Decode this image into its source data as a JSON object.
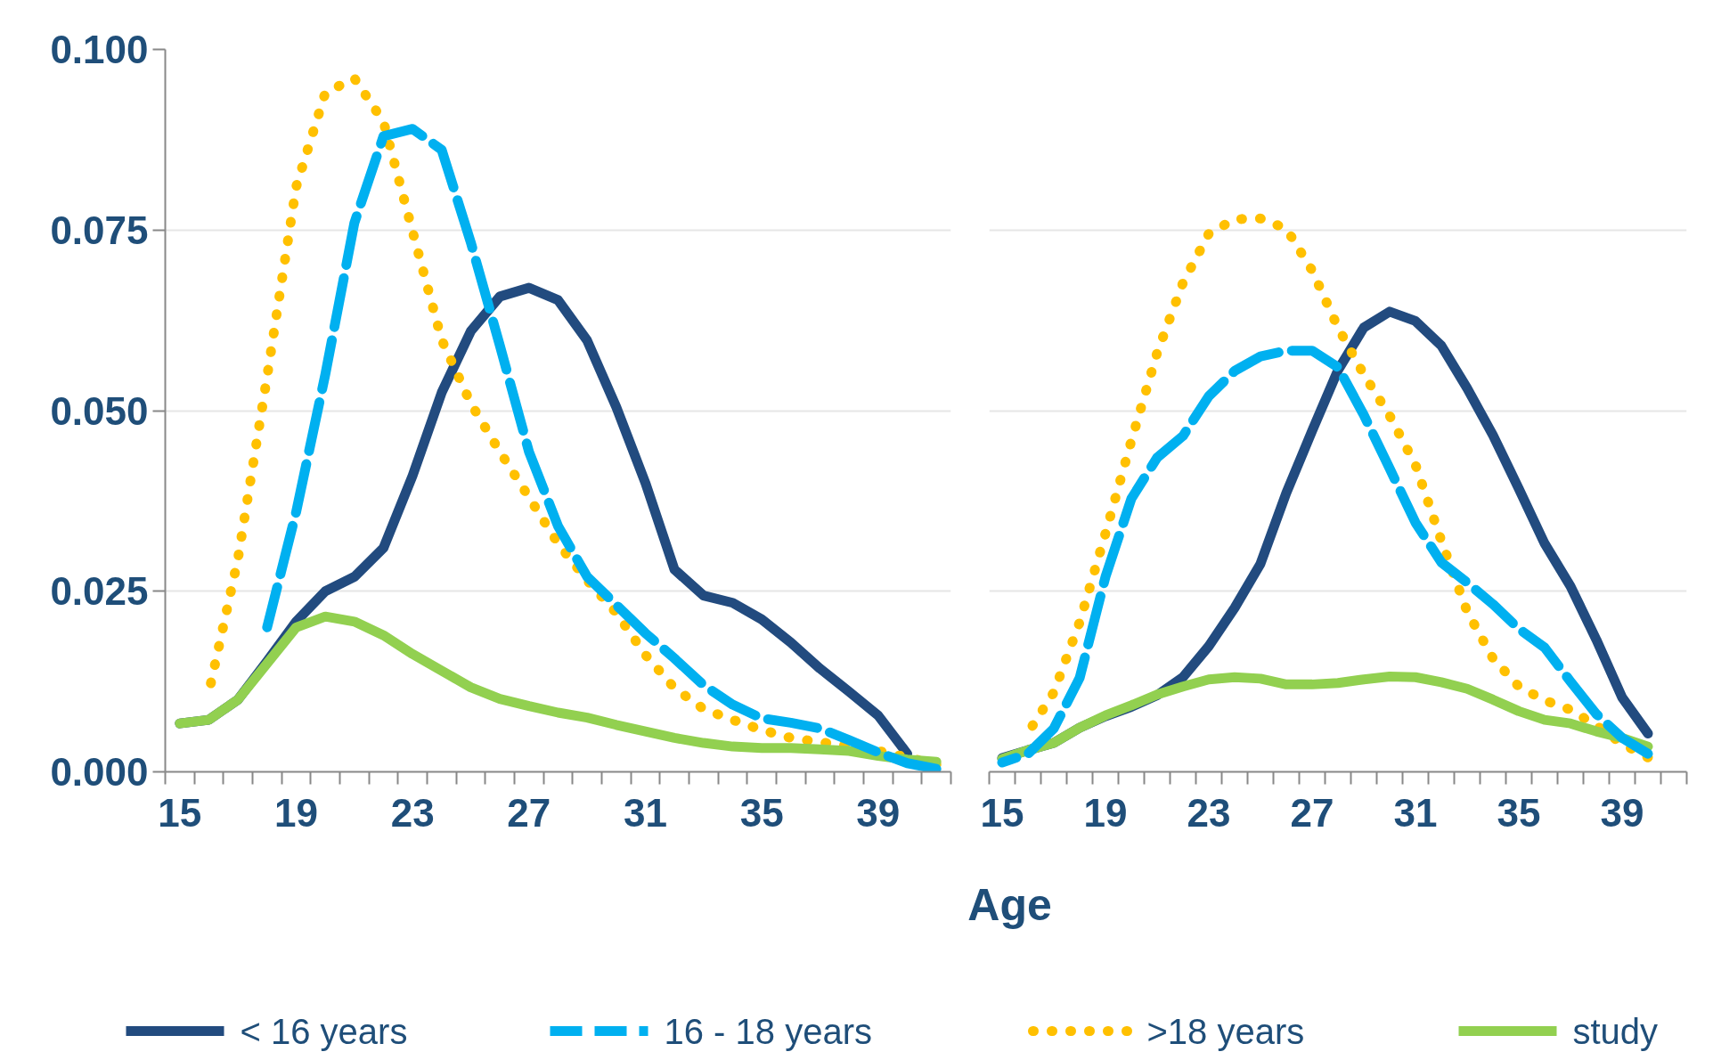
{
  "chart_data": [
    {
      "type": "line",
      "xlabel": "Age",
      "legend": "bottom",
      "grid": "y",
      "marker": "none",
      "categories": [
        "15",
        null,
        null,
        null,
        "19",
        null,
        null,
        null,
        "23",
        null,
        null,
        null,
        "27",
        null,
        null,
        null,
        "31",
        null,
        null,
        null,
        "35",
        null,
        null,
        null,
        "39",
        null,
        null
      ],
      "ylim": [
        0,
        0.1
      ],
      "yticks": [
        {
          "value": 0,
          "label": "0.000"
        },
        {
          "value": 0.025,
          "label": "0.025"
        },
        {
          "value": 0.05,
          "label": "0.050"
        },
        {
          "value": 0.075,
          "label": "0.075"
        },
        {
          "value": 0.1,
          "label": "0.100"
        }
      ],
      "series": [
        {
          "name": "< 16 years",
          "color": "#224b7f",
          "line_style": "solid",
          "values": [
            0.0067,
            0.0072,
            0.01,
            0.0153,
            0.0208,
            0.025,
            0.027,
            0.031,
            0.041,
            0.0525,
            0.061,
            0.0658,
            0.067,
            0.0653,
            0.0597,
            0.0505,
            0.04,
            0.028,
            0.0244,
            0.0234,
            0.0211,
            0.0179,
            0.0143,
            0.0111,
            0.0078,
            0.0025,
            null
          ]
        },
        {
          "name": "16 - 18 years",
          "color": "#00b0f0",
          "line_style": "dashed",
          "values": [
            null,
            null,
            null,
            0.02,
            0.036,
            0.055,
            0.076,
            0.088,
            0.089,
            0.0861,
            0.0733,
            0.059,
            0.0443,
            0.034,
            0.027,
            0.0231,
            0.0192,
            0.0157,
            0.012,
            0.0093,
            0.0074,
            0.0068,
            0.006,
            0.0044,
            0.0027,
            0.0012,
            0.0004
          ]
        },
        {
          "name": ">18 years",
          "color": "#ffc000",
          "line_style": "dotted",
          "values": [
            null,
            0.011,
            0.0295,
            0.0547,
            0.081,
            0.094,
            0.096,
            0.09,
            0.0748,
            0.0598,
            0.051,
            0.0443,
            0.038,
            0.0316,
            0.0265,
            0.022,
            0.0162,
            0.0116,
            0.0087,
            0.0072,
            0.0058,
            0.0047,
            0.0041,
            0.0036,
            0.0029,
            0.002,
            0.001
          ]
        },
        {
          "name": "study",
          "color": "#92d050",
          "line_style": "solid",
          "values": [
            0.0067,
            0.0072,
            0.01,
            0.015,
            0.02,
            0.0215,
            0.0208,
            0.0189,
            0.0163,
            0.014,
            0.0117,
            0.0101,
            0.0091,
            0.0082,
            0.0075,
            0.0065,
            0.0056,
            0.0047,
            0.004,
            0.0035,
            0.0033,
            0.0033,
            0.0031,
            0.0029,
            0.0022,
            0.0017,
            0.0014
          ]
        }
      ]
    },
    {
      "type": "line",
      "grid": "y",
      "marker": "none",
      "tick_labels": "x",
      "categories": [
        "15",
        null,
        null,
        null,
        "19",
        null,
        null,
        null,
        "23",
        null,
        null,
        null,
        "27",
        null,
        null,
        null,
        "31",
        null,
        null,
        null,
        "35",
        null,
        null,
        null,
        "39",
        null,
        null
      ],
      "ylim": [
        0,
        0.1
      ],
      "yticks": [
        0,
        0.025,
        0.05,
        0.075,
        0.1
      ],
      "series": [
        {
          "color": "#224b7f",
          "line_style": "solid",
          "values": [
            0.0019,
            0.003,
            0.004,
            0.0061,
            0.0077,
            0.009,
            0.0106,
            0.0131,
            0.0174,
            0.0227,
            0.0288,
            0.0386,
            0.0472,
            0.0556,
            0.0615,
            0.0637,
            0.0624,
            0.059,
            0.0531,
            0.0466,
            0.0392,
            0.0316,
            0.0257,
            0.0183,
            0.0103,
            0.0053,
            null
          ]
        },
        {
          "color": "#00b0f0",
          "line_style": "dashed",
          "values": [
            0.0013,
            0.0025,
            0.006,
            0.013,
            0.027,
            0.0378,
            0.0435,
            0.0465,
            0.052,
            0.0555,
            0.0575,
            0.0583,
            0.0583,
            0.056,
            0.0494,
            0.042,
            0.0345,
            0.029,
            0.0262,
            0.0232,
            0.0198,
            0.0172,
            0.0125,
            0.008,
            0.0047,
            0.0025,
            null
          ]
        },
        {
          "color": "#ffc000",
          "line_style": "dotted",
          "values": [
            null,
            0.0054,
            0.011,
            0.0207,
            0.033,
            0.0458,
            0.058,
            0.0677,
            0.0745,
            0.0765,
            0.0766,
            0.0752,
            0.0694,
            0.0615,
            0.055,
            0.0493,
            0.0425,
            0.032,
            0.0222,
            0.0157,
            0.0118,
            0.0099,
            0.0086,
            0.0064,
            0.0039,
            0.002,
            null
          ]
        },
        {
          "color": "#92d050",
          "line_style": "solid",
          "values": [
            0.0018,
            0.003,
            0.004,
            0.0061,
            0.0078,
            0.0092,
            0.0107,
            0.0118,
            0.0128,
            0.0131,
            0.0129,
            0.0121,
            0.0121,
            0.0123,
            0.0128,
            0.0132,
            0.0131,
            0.0124,
            0.0115,
            0.01,
            0.0084,
            0.0072,
            0.0067,
            0.0056,
            0.0047,
            0.0035,
            null
          ]
        }
      ]
    }
  ]
}
